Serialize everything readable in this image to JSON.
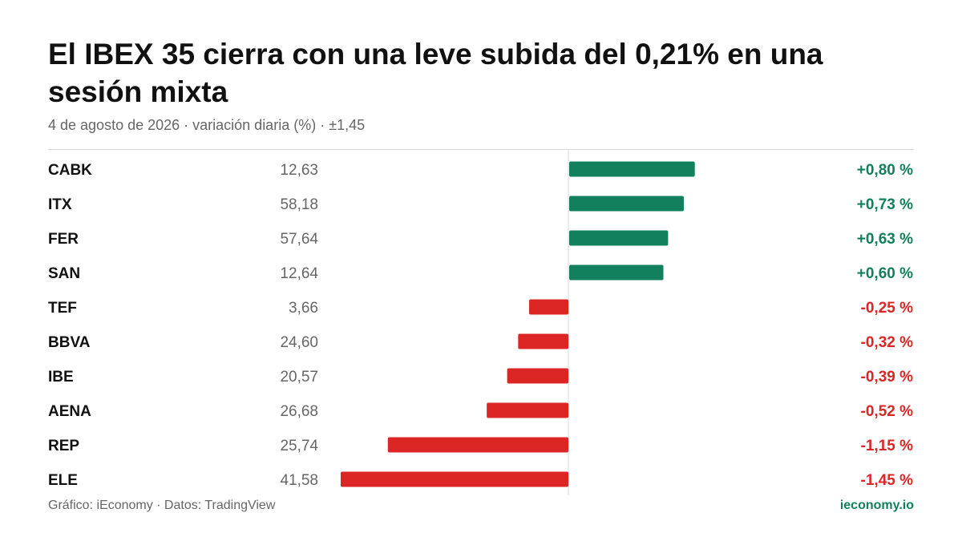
{
  "title": "El IBEX 35 cierra con una leve subida del 0,21% en una sesión mixta",
  "subtitle": "4 de agosto de 2026 · variación diaria (%) · ±1,45",
  "footer": {
    "source": "Gráfico: iEconomy · Datos: TradingView",
    "brand": "ieconomy.io"
  },
  "colors": {
    "positive": "#12805c",
    "negative": "#dc2626",
    "ticker": "#111111",
    "price": "#666666",
    "axis": "#d9d9d9"
  },
  "chart_data": {
    "type": "bar",
    "orientation": "horizontal",
    "title": "El IBEX 35 cierra con una leve subida del 0,21% en una sesión mixta",
    "subtitle": "4 de agosto de 2026 · variación diaria (%) · ±1,45",
    "xlim": [
      -1.45,
      1.45
    ],
    "categories": [
      "CABK",
      "ITX",
      "FER",
      "SAN",
      "TEF",
      "BBVA",
      "IBE",
      "AENA",
      "REP",
      "ELE"
    ],
    "prices": [
      "12,63",
      "58,18",
      "57,64",
      "12,64",
      "3,66",
      "24,60",
      "20,57",
      "26,68",
      "25,74",
      "41,58"
    ],
    "values": [
      0.8,
      0.73,
      0.63,
      0.6,
      -0.25,
      -0.32,
      -0.39,
      -0.52,
      -1.15,
      -1.45
    ],
    "labels": [
      "+0,80 %",
      "+0,73 %",
      "+0,63 %",
      "+0,60 %",
      "-0,25 %",
      "-0,32 %",
      "-0,39 %",
      "-0,52 %",
      "-1,15 %",
      "-1,45 %"
    ],
    "grid": false,
    "legend": "none"
  }
}
